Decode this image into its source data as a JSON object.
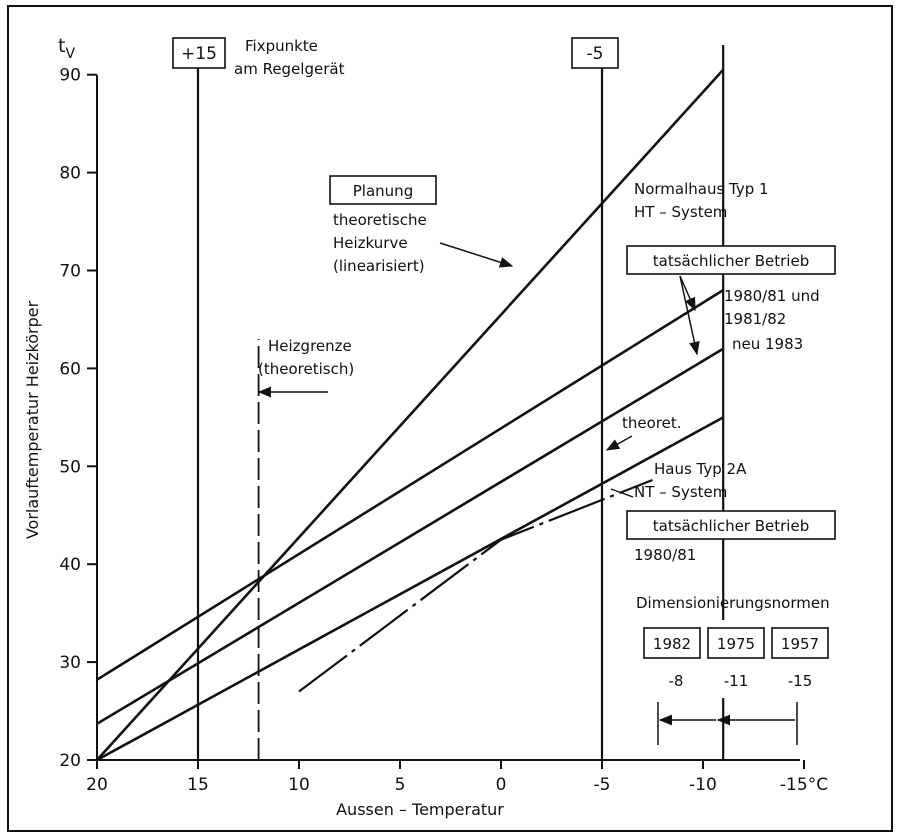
{
  "chart_data": {
    "type": "line",
    "x_axis": {
      "label": "Aussen – Temperatur",
      "range": [
        20,
        -15
      ],
      "ticks": [
        20,
        15,
        10,
        5,
        0,
        -5,
        -10,
        -15
      ],
      "tick_labels": [
        "20",
        "15",
        "10",
        "5",
        "0",
        "-5",
        "-10",
        "-15°C"
      ]
    },
    "y_axis": {
      "label": "Vorlauftemperatur Heizkörper",
      "symbol": "t",
      "symbol_sub": "V",
      "range": [
        20,
        90
      ],
      "ticks": [
        20,
        30,
        40,
        50,
        60,
        70,
        80,
        90
      ]
    },
    "series": [
      {
        "key": "planung",
        "x": [
          20,
          -11
        ],
        "y": [
          20,
          90.5
        ],
        "style": "solid"
      },
      {
        "key": "betrieb_1980_82",
        "x": [
          20,
          -11
        ],
        "y": [
          28.2,
          68
        ],
        "style": "solid"
      },
      {
        "key": "neu_1983",
        "x": [
          20,
          -11
        ],
        "y": [
          23.7,
          62
        ],
        "style": "solid"
      },
      {
        "key": "typ2a_theoret",
        "x": [
          20,
          -11
        ],
        "y": [
          20,
          55
        ],
        "style": "solid"
      },
      {
        "key": "typ2a_betrieb",
        "x": [
          10,
          0,
          -7.5
        ],
        "y": [
          27,
          42.5,
          48.6
        ],
        "style": "dash-dot"
      }
    ],
    "vertical_lines": [
      {
        "x": 15,
        "style": "solid"
      },
      {
        "x": -5,
        "style": "solid"
      },
      {
        "x": -11,
        "style": "solid"
      },
      {
        "x": 12,
        "style": "dashed"
      }
    ],
    "annotations": {
      "fix_plus": "+15",
      "fix_minus": "-5",
      "fixpunkte_1": "Fixpunkte",
      "fixpunkte_2": "am Regelgerät",
      "planung": "Planung",
      "theoret_1": "theoretische",
      "theoret_2": "Heizkurve",
      "theoret_3": "(linearisiert)",
      "normalhaus_1": "Normalhaus Typ 1",
      "normalhaus_2": "HT – System",
      "betrieb_a": "tatsächlicher Betrieb",
      "jahr_a1": "1980/81 und",
      "jahr_a2": "1981/82",
      "neu": "neu 1983",
      "heizgrenze_1": "Heizgrenze",
      "heizgrenze_2": "(theoretisch)",
      "theoret_short": "theoret.",
      "haus2a_1": "Haus Typ 2A",
      "haus2a_2": "NT – System",
      "betrieb_b": "tatsächlicher Betrieb",
      "jahr_b": "1980/81",
      "dim": "Dimensionierungsnormen",
      "norm_1982": "1982",
      "norm_1975": "1975",
      "norm_1957": "1957",
      "norm_val_1982": "-8",
      "norm_val_1975": "-11",
      "norm_val_1957": "-15"
    }
  }
}
